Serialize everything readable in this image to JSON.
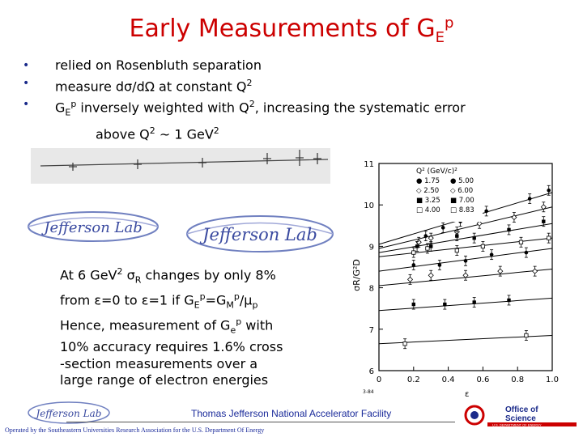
{
  "title": {
    "main": "Early Measurements of G",
    "sub": "E",
    "sup": "p"
  },
  "bullets": {
    "b1": "relied on Rosenbluth separation",
    "b2_pre": "measure d",
    "b2_sigma": "σ",
    "b2_mid": "/d",
    "b2_omega": "Ω",
    "b2_post": " at constant Q",
    "b2_sup": "2",
    "b3_g": "G",
    "b3_sub": "E",
    "b3_sup": "p",
    "b3_mid": " inversely weighted with Q",
    "b3_sup2": "2",
    "b3_post": ", increasing the systematic error",
    "b4_pre": "above Q",
    "b4_sup": "2",
    "b4_post": " ~ 1 GeV",
    "b4_sup2": "2"
  },
  "paragraph": {
    "l1_pre": "At 6 GeV",
    "l1_sup": "2",
    "l1_sig": " σ",
    "l1_sub": "R",
    "l1_post": " changes by only 8%",
    "l2_pre": "from ε=0 to ε=1 if G",
    "l2_sub1": "E",
    "l2_sup1": "p",
    "l2_mid": "=G",
    "l2_sub2": "M",
    "l2_sup2": "p",
    "l2_post": "/μ",
    "l2_sub3": "p",
    "l3_pre": "Hence, measurement of G",
    "l3_sub": "e",
    "l3_sup": "p",
    "l3_post": " with",
    "l4": "10% accuracy requires 1.6% cross",
    "l5": "-section measurements over a",
    "l6": "large range of electron energies"
  },
  "logos": {
    "text": "Jefferson Lab"
  },
  "chart_data": {
    "type": "line",
    "ylabel": "σR/G²D",
    "xlabel": "ε",
    "xlim": [
      0,
      1.0
    ],
    "ylim": [
      6,
      11
    ],
    "x_ticks": [
      "0",
      "0.2",
      "0.4",
      "0.6",
      "0.8",
      "1.0"
    ],
    "y_ticks": [
      "11",
      "10",
      "9",
      "8",
      "7",
      "6"
    ],
    "legend_title": "Q² (GeV/c)²",
    "legend": [
      {
        "marker": "●",
        "left": "1.75",
        "right": "5.00",
        "mr": "●"
      },
      {
        "marker": "◇",
        "left": "2.50",
        "right": "6.00",
        "mr": "◇"
      },
      {
        "marker": "■",
        "left": "3.25",
        "right": "7.00",
        "mr": "■"
      },
      {
        "marker": "□",
        "left": "4.00",
        "right": "8.83",
        "mr": "□"
      }
    ],
    "figure_id": "3-84",
    "series": [
      {
        "y0": 9.05,
        "y1": 10.3,
        "points": [
          [
            0.27,
            9.25
          ],
          [
            0.37,
            9.45
          ],
          [
            0.47,
            9.6
          ],
          [
            0.62,
            9.85
          ],
          [
            0.87,
            10.15
          ],
          [
            0.98,
            10.35
          ]
        ]
      },
      {
        "y0": 8.95,
        "y1": 9.95,
        "points": [
          [
            0.23,
            9.1
          ],
          [
            0.3,
            9.2
          ],
          [
            0.45,
            9.35
          ],
          [
            0.58,
            9.55
          ],
          [
            0.78,
            9.7
          ],
          [
            0.95,
            9.95
          ]
        ]
      },
      {
        "y0": 8.85,
        "y1": 9.55,
        "points": [
          [
            0.22,
            9.0
          ],
          [
            0.3,
            9.0
          ],
          [
            0.45,
            9.25
          ],
          [
            0.55,
            9.2
          ],
          [
            0.75,
            9.4
          ],
          [
            0.95,
            9.6
          ]
        ]
      },
      {
        "y0": 8.75,
        "y1": 9.2,
        "points": [
          [
            0.2,
            8.85
          ],
          [
            0.28,
            8.95
          ],
          [
            0.45,
            8.9
          ],
          [
            0.6,
            9.0
          ],
          [
            0.82,
            9.1
          ],
          [
            0.98,
            9.2
          ]
        ]
      },
      {
        "y0": 8.4,
        "y1": 8.95,
        "points": [
          [
            0.2,
            8.55
          ],
          [
            0.35,
            8.55
          ],
          [
            0.5,
            8.65
          ],
          [
            0.65,
            8.8
          ],
          [
            0.85,
            8.85
          ]
        ]
      },
      {
        "y0": 8.05,
        "y1": 8.45,
        "points": [
          [
            0.18,
            8.2
          ],
          [
            0.3,
            8.3
          ],
          [
            0.5,
            8.3
          ],
          [
            0.7,
            8.4
          ],
          [
            0.9,
            8.4
          ]
        ]
      },
      {
        "y0": 7.45,
        "y1": 7.75,
        "points": [
          [
            0.2,
            7.6
          ],
          [
            0.38,
            7.6
          ],
          [
            0.55,
            7.65
          ],
          [
            0.75,
            7.7
          ]
        ]
      },
      {
        "y0": 6.65,
        "y1": 6.85,
        "points": [
          [
            0.15,
            6.65
          ],
          [
            0.85,
            6.85
          ]
        ]
      }
    ]
  },
  "footer": {
    "center": "Thomas Jefferson National Accelerator Facility",
    "bottom": "Operated by the Southeastern Universities Research Association for the U.S. Department Of Energy",
    "office_top": "Office of",
    "office_bottom": "Science",
    "office_sub": "U.S. DEPARTMENT OF ENERGY"
  }
}
